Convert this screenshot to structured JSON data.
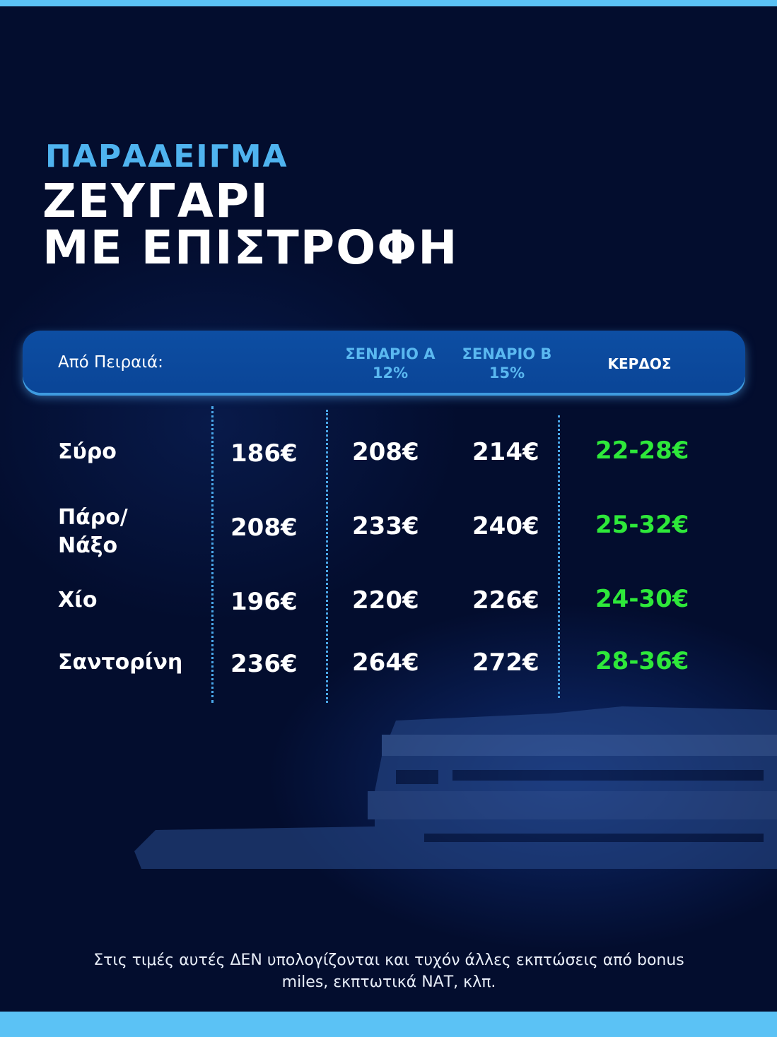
{
  "kicker": "ΠΑΡΑΔΕΙΓΜΑ",
  "title_line1": "ΖΕΥΓΑΡΙ",
  "title_line2": "ΜΕ ΕΠΙΣΤΡΟΦΗ",
  "header": {
    "from": "Από Πειραιά:",
    "scenario_a": "ΣΕΝΑΡΙΟ Α",
    "scenario_a_pct": "12%",
    "scenario_b": "ΣΕΝΑΡΙΟ Β",
    "scenario_b_pct": "15%",
    "profit": "ΚΕΡΔΟΣ"
  },
  "rows": [
    {
      "dest1": "Σύρο",
      "dest2": "",
      "base": "186€",
      "a": "208€",
      "b": "214€",
      "profit": "22-28€"
    },
    {
      "dest1": "Πάρο/",
      "dest2": "Νάξο",
      "base": "208€",
      "a": "233€",
      "b": "240€",
      "profit": "25-32€"
    },
    {
      "dest1": "Χίο",
      "dest2": "",
      "base": "196€",
      "a": "220€",
      "b": "226€",
      "profit": "24-30€"
    },
    {
      "dest1": "Σαντορίνη",
      "dest2": "",
      "base": "236€",
      "a": "264€",
      "b": "272€",
      "profit": "28-36€"
    }
  ],
  "note_line1": "Στις τιμές αυτές ΔΕΝ υπολογίζονται και τυχόν άλλες εκπτώσεις από bonus",
  "note_line2": "miles, εκπτωτικά ΝΑΤ, κλπ.",
  "colors": {
    "accent": "#4fb3ef",
    "profit": "#2ee83a",
    "header": "#0d4ea3",
    "bar": "#5bc2f5",
    "background": "#030d2e"
  }
}
